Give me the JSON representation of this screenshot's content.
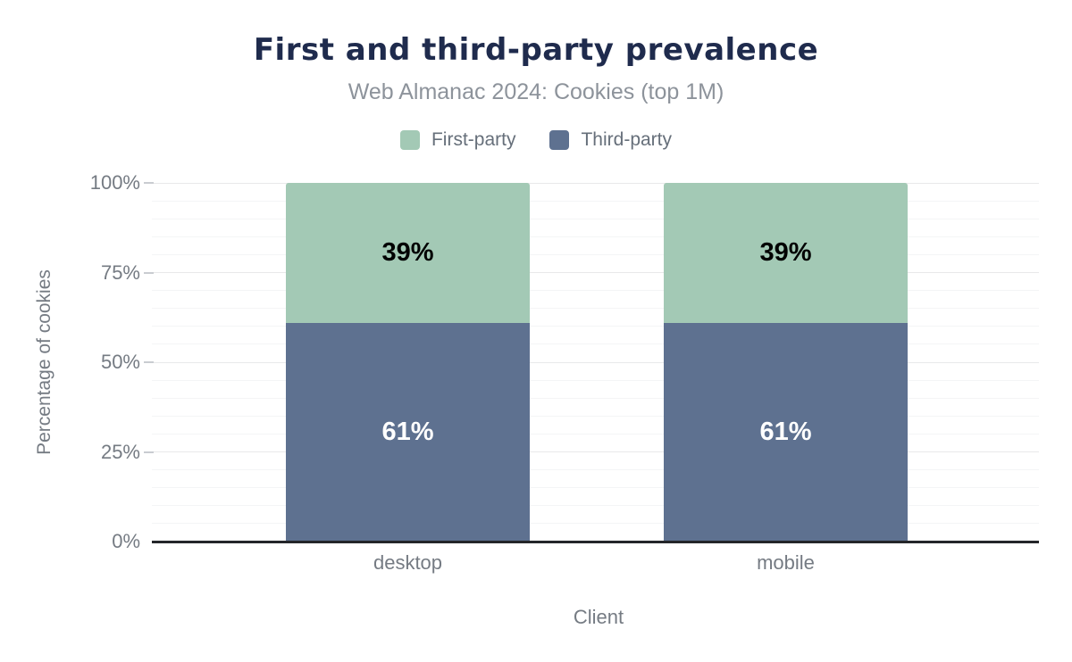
{
  "chart_data": {
    "type": "bar",
    "stacked": true,
    "title": "First and third-party prevalence",
    "subtitle": "Web Almanac 2024: Cookies (top 1M)",
    "xlabel": "Client",
    "ylabel": "Percentage of cookies",
    "categories": [
      "desktop",
      "mobile"
    ],
    "series": [
      {
        "name": "First-party",
        "color": "#a3c9b5",
        "values": [
          39,
          39
        ],
        "value_labels": [
          "39%",
          "39%"
        ],
        "label_color": "#000000"
      },
      {
        "name": "Third-party",
        "color": "#5e7190",
        "values": [
          61,
          61
        ],
        "value_labels": [
          "61%",
          "61%"
        ],
        "label_color": "#ffffff"
      }
    ],
    "stack_order_bottom_to_top": [
      "Third-party",
      "First-party"
    ],
    "y_axis": {
      "min": 0,
      "max": 100,
      "major_step": 25,
      "minor_step": 5,
      "suffix": "%",
      "tick_labels": [
        "0%",
        "25%",
        "50%",
        "75%",
        "100%"
      ]
    },
    "legend_position": "top",
    "grid": true
  },
  "colors": {
    "title": "#1f2b4d",
    "subtitle": "#8d939b",
    "legend_text": "#666f7a",
    "axis_text": "#757b83",
    "axis_line": "#24262a",
    "grid_major": "#e8e9ea",
    "grid_minor": "#f4f5f6",
    "tick_mark": "#c9ccd1",
    "background": "#ffffff"
  }
}
